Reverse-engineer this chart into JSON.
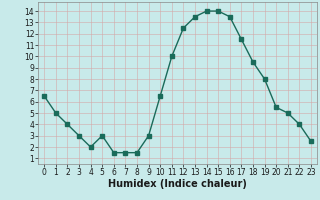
{
  "x": [
    0,
    1,
    2,
    3,
    4,
    5,
    6,
    7,
    8,
    9,
    10,
    11,
    12,
    13,
    14,
    15,
    16,
    17,
    18,
    19,
    20,
    21,
    22,
    23
  ],
  "y": [
    6.5,
    5.0,
    4.0,
    3.0,
    2.0,
    3.0,
    1.5,
    1.5,
    1.5,
    3.0,
    6.5,
    10.0,
    12.5,
    13.5,
    14.0,
    14.0,
    13.5,
    11.5,
    9.5,
    8.0,
    5.5,
    5.0,
    4.0,
    2.5
  ],
  "xlabel": "Humidex (Indice chaleur)",
  "ylim": [
    0.5,
    14.8
  ],
  "xlim": [
    -0.5,
    23.5
  ],
  "line_color": "#1a6b5a",
  "bg_color": "#c8eaea",
  "grid_color": "#b0d8d8",
  "grid_color_red": "#e8b8b8",
  "tick_color": "#1a1a1a",
  "xlabel_color": "#1a1a1a",
  "yticks": [
    1,
    2,
    3,
    4,
    5,
    6,
    7,
    8,
    9,
    10,
    11,
    12,
    13,
    14
  ],
  "xticks": [
    0,
    1,
    2,
    3,
    4,
    5,
    6,
    7,
    8,
    9,
    10,
    11,
    12,
    13,
    14,
    15,
    16,
    17,
    18,
    19,
    20,
    21,
    22,
    23
  ],
  "marker_size": 2.5,
  "line_width": 1.0,
  "font_size_label": 7,
  "font_size_tick": 5.5
}
